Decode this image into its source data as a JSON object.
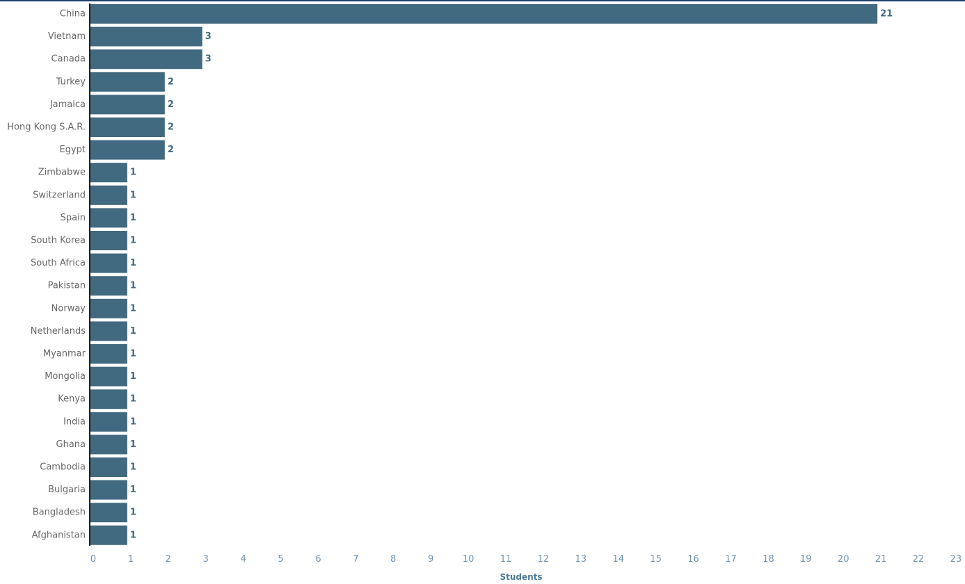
{
  "colors": {
    "bar": "#41697f",
    "value_label": "#41697f",
    "tick_label": "#6f93ae",
    "axis_title": "#4f7a96",
    "category_label": "#666666",
    "axis_line": "#222222",
    "top_rule": "#1c3f6e"
  },
  "chart_data": {
    "type": "bar",
    "orientation": "horizontal",
    "categories": [
      "China",
      "Vietnam",
      "Canada",
      "Turkey",
      "Jamaica",
      "Hong Kong S.A.R.",
      "Egypt",
      "Zimbabwe",
      "Switzerland",
      "Spain",
      "South Korea",
      "South Africa",
      "Pakistan",
      "Norway",
      "Netherlands",
      "Myanmar",
      "Mongolia",
      "Kenya",
      "India",
      "Ghana",
      "Cambodia",
      "Bulgaria",
      "Bangladesh",
      "Afghanistan"
    ],
    "values": [
      21,
      3,
      3,
      2,
      2,
      2,
      2,
      1,
      1,
      1,
      1,
      1,
      1,
      1,
      1,
      1,
      1,
      1,
      1,
      1,
      1,
      1,
      1,
      1
    ],
    "xlabel": "Students",
    "xlim": [
      0,
      23
    ],
    "xticks": [
      0,
      1,
      2,
      3,
      4,
      5,
      6,
      7,
      8,
      9,
      10,
      11,
      12,
      13,
      14,
      15,
      16,
      17,
      18,
      19,
      20,
      21,
      22,
      23
    ],
    "data_labels": true,
    "grid": false
  }
}
